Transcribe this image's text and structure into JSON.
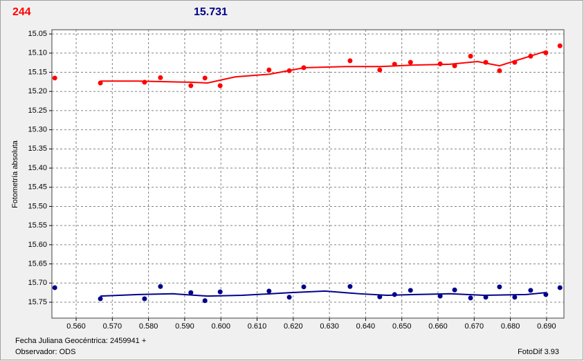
{
  "chart_data": {
    "type": "scatter",
    "header_left": "244",
    "header_left_color": "#ff0000",
    "header_right": "15.731",
    "header_right_color": "#00008b",
    "ylabel": "Fotometría absoluta",
    "footer_date": "Fecha Juliana Geocéntrica: 2459941 +",
    "footer_observer": "Observador: ODS",
    "footer_software": "FotoDif 3.93",
    "xlim": [
      0.5533,
      0.6948
    ],
    "ylim": [
      15.039,
      15.7915
    ],
    "y_inverted": true,
    "grid": true,
    "xticks": [
      {
        "value": 0.56,
        "label": "0.560"
      },
      {
        "value": 0.57,
        "label": "0.570"
      },
      {
        "value": 0.58,
        "label": "0.580"
      },
      {
        "value": 0.59,
        "label": "0.590"
      },
      {
        "value": 0.6,
        "label": "0.600"
      },
      {
        "value": 0.61,
        "label": "0.610"
      },
      {
        "value": 0.62,
        "label": "0.620"
      },
      {
        "value": 0.63,
        "label": "0.630"
      },
      {
        "value": 0.64,
        "label": "0.640"
      },
      {
        "value": 0.65,
        "label": "0.650"
      },
      {
        "value": 0.66,
        "label": "0.660"
      },
      {
        "value": 0.67,
        "label": "0.670"
      },
      {
        "value": 0.68,
        "label": "0.680"
      },
      {
        "value": 0.69,
        "label": "0.690"
      }
    ],
    "yticks": [
      15.05,
      {
        "value": 15.1,
        "label": "15.10"
      },
      15.15,
      {
        "value": 15.2,
        "label": "15.20"
      },
      15.25,
      {
        "value": 15.3,
        "label": "15.30"
      },
      15.35,
      {
        "value": 15.4,
        "label": "15.40"
      },
      15.45,
      {
        "value": 15.5,
        "label": "15.50"
      },
      15.55,
      {
        "value": 15.6,
        "label": "15.60"
      },
      15.65,
      {
        "value": 15.7,
        "label": "15.70"
      },
      15.75
    ],
    "series": [
      {
        "mode": "markers",
        "color": "#ff0000",
        "x": [
          0.5541,
          0.5667,
          0.5789,
          0.5833,
          0.5917,
          0.5956,
          0.5998,
          0.6133,
          0.6189,
          0.6229,
          0.6357,
          0.6439,
          0.648,
          0.6524,
          0.6606,
          0.6646,
          0.669,
          0.6732,
          0.677,
          0.6812,
          0.6856,
          0.6898,
          0.6937
        ],
        "values": [
          15.165,
          15.178,
          15.176,
          15.164,
          15.185,
          15.165,
          15.185,
          15.144,
          15.146,
          15.138,
          15.12,
          15.144,
          15.129,
          15.124,
          15.128,
          15.133,
          15.108,
          15.124,
          15.146,
          15.124,
          15.108,
          15.099,
          15.081
        ]
      },
      {
        "mode": "line",
        "color": "#ff0000",
        "x": [
          0.5667,
          0.5772,
          0.5868,
          0.5917,
          0.5963,
          0.604,
          0.6135,
          0.6231,
          0.6346,
          0.6441,
          0.6537,
          0.6633,
          0.6709,
          0.677,
          0.6824,
          0.6898
        ],
        "values": [
          15.173,
          15.173,
          15.175,
          15.176,
          15.178,
          15.162,
          15.155,
          15.138,
          15.135,
          15.135,
          15.131,
          15.129,
          15.122,
          15.133,
          15.117,
          15.095
        ]
      },
      {
        "mode": "markers",
        "color": "#00008b",
        "x": [
          0.5541,
          0.5667,
          0.5789,
          0.5833,
          0.5917,
          0.5956,
          0.5998,
          0.6133,
          0.6189,
          0.6229,
          0.6357,
          0.6439,
          0.648,
          0.6524,
          0.6606,
          0.6646,
          0.669,
          0.6732,
          0.677,
          0.6812,
          0.6856,
          0.6898,
          0.6937
        ],
        "values": [
          15.712,
          15.741,
          15.741,
          15.709,
          15.725,
          15.746,
          15.723,
          15.721,
          15.737,
          15.71,
          15.709,
          15.736,
          15.73,
          15.719,
          15.734,
          15.718,
          15.739,
          15.737,
          15.71,
          15.737,
          15.719,
          15.73,
          15.712
        ]
      },
      {
        "mode": "line",
        "color": "#00008b",
        "x": [
          0.5667,
          0.5772,
          0.5868,
          0.5963,
          0.6059,
          0.6193,
          0.6288,
          0.6384,
          0.646,
          0.6537,
          0.6633,
          0.6728,
          0.6843,
          0.6898
        ],
        "values": [
          15.734,
          15.73,
          15.728,
          15.734,
          15.732,
          15.725,
          15.721,
          15.728,
          15.732,
          15.73,
          15.728,
          15.732,
          15.73,
          15.725
        ]
      }
    ]
  }
}
